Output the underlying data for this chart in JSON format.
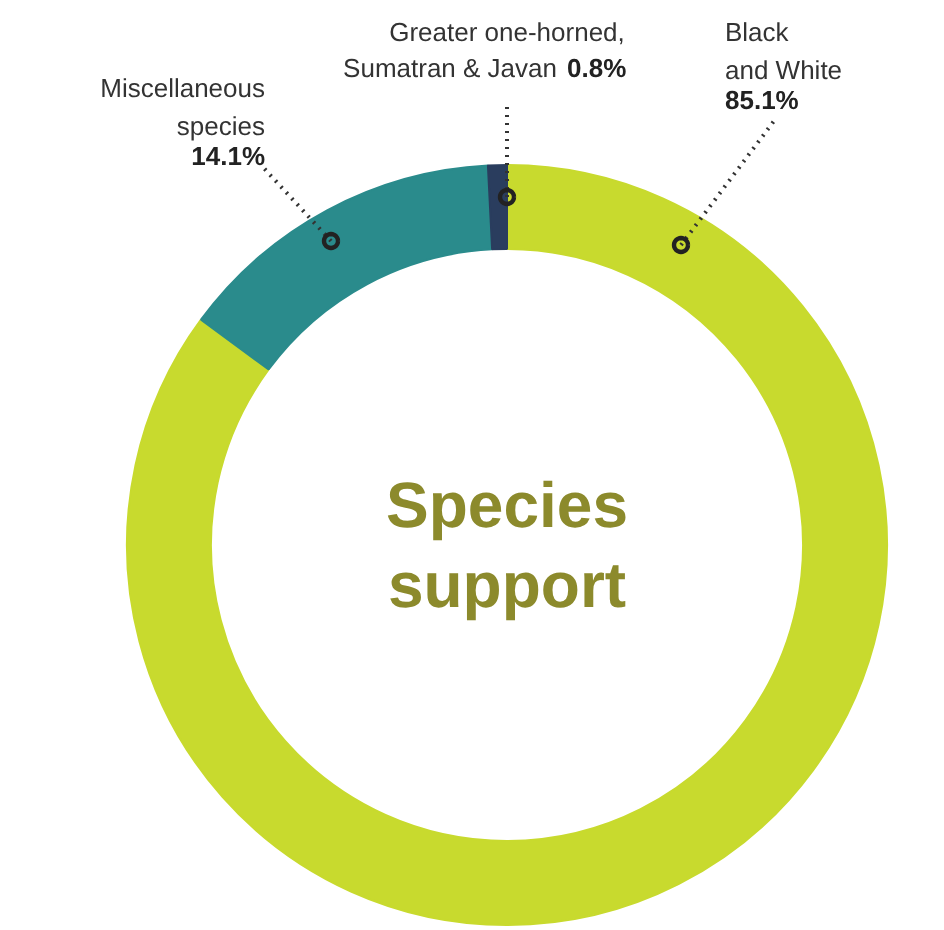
{
  "chart_data": {
    "type": "donut",
    "title": "Species\nsupport",
    "categories": [
      "Black\nand White",
      "Miscellaneous\nspecies",
      "Greater one-horned,\nSumatran & Javan"
    ],
    "values": [
      85.1,
      14.1,
      0.8
    ],
    "colors": [
      "#c8da2e",
      "#2a8b8c",
      "#2a3d5e"
    ],
    "value_labels": [
      "85.1%",
      "14.1%",
      "0.8%"
    ]
  }
}
